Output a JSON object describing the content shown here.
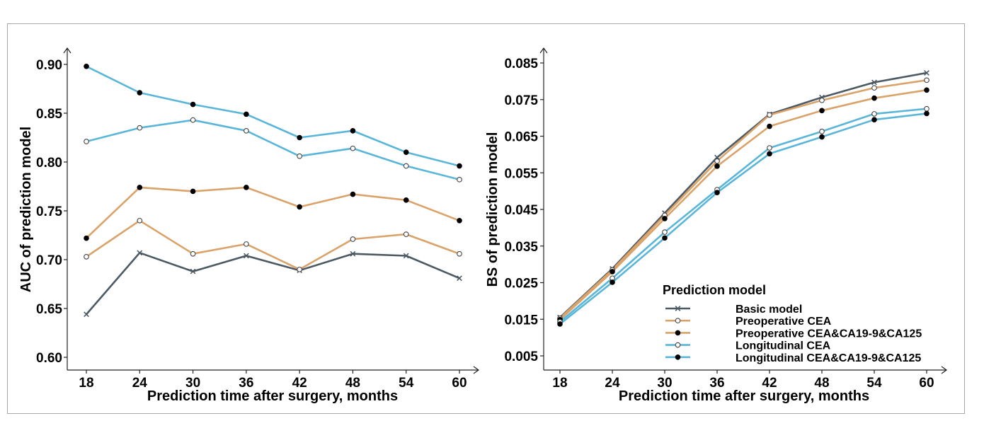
{
  "chart_data": [
    {
      "type": "line",
      "xlabel": "Prediction time after surgery, months",
      "ylabel": "AUC of prediction model",
      "x": [
        18,
        24,
        30,
        36,
        42,
        48,
        54,
        60
      ],
      "xlim": [
        16,
        61.5
      ],
      "ylim": [
        0.585,
        0.915
      ],
      "yticks": [
        "0.60",
        "0.65",
        "0.70",
        "0.75",
        "0.80",
        "0.85",
        "0.90"
      ],
      "grid": false,
      "series": [
        {
          "name": "Basic model",
          "color": "#4d5a63",
          "marker": "x",
          "values": [
            0.644,
            0.707,
            0.688,
            0.704,
            0.689,
            0.706,
            0.704,
            0.681
          ]
        },
        {
          "name": "Preoperative CEA",
          "color": "#d9a36a",
          "marker": "open-circle",
          "values": [
            0.703,
            0.74,
            0.706,
            0.716,
            0.69,
            0.721,
            0.726,
            0.706
          ]
        },
        {
          "name": "Preoperative CEA&CA19-9&CA125",
          "color": "#d9a36a",
          "marker": "filled-circle",
          "values": [
            0.722,
            0.774,
            0.77,
            0.774,
            0.754,
            0.767,
            0.761,
            0.74
          ]
        },
        {
          "name": "Longitudinal CEA",
          "color": "#5ab6d9",
          "marker": "open-circle",
          "values": [
            0.821,
            0.835,
            0.843,
            0.832,
            0.806,
            0.814,
            0.796,
            0.782
          ]
        },
        {
          "name": "Longitudinal CEA&CA19-9&CA125",
          "color": "#5ab6d9",
          "marker": "filled-circle",
          "values": [
            0.898,
            0.871,
            0.859,
            0.849,
            0.825,
            0.832,
            0.81,
            0.796
          ]
        }
      ]
    },
    {
      "type": "line",
      "xlabel": "Prediction time after surgery, months",
      "ylabel": "BS of prediction model",
      "x": [
        18,
        24,
        30,
        36,
        42,
        48,
        54,
        60
      ],
      "xlim": [
        16,
        61.5
      ],
      "ylim": [
        0.002,
        0.088
      ],
      "yticks": [
        "0.005",
        "0.015",
        "0.025",
        "0.035",
        "0.045",
        "0.055",
        "0.065",
        "0.075",
        "0.085"
      ],
      "grid": false,
      "legend": {
        "title": "Prediction model",
        "position": "bottom-right"
      },
      "series": [
        {
          "name": "Basic model",
          "color": "#4d5a63",
          "marker": "x",
          "values": [
            0.0155,
            0.0288,
            0.044,
            0.0592,
            0.071,
            0.0756,
            0.0797,
            0.0823
          ]
        },
        {
          "name": "Preoperative CEA",
          "color": "#d9a36a",
          "marker": "open-circle",
          "values": [
            0.0153,
            0.0285,
            0.0434,
            0.0582,
            0.0708,
            0.0748,
            0.0782,
            0.0803
          ]
        },
        {
          "name": "Preoperative CEA&CA19-9&CA125",
          "color": "#d9a36a",
          "marker": "filled-circle",
          "values": [
            0.0149,
            0.028,
            0.0425,
            0.0568,
            0.0677,
            0.072,
            0.0754,
            0.0776
          ]
        },
        {
          "name": "Longitudinal CEA",
          "color": "#5ab6d9",
          "marker": "open-circle",
          "values": [
            0.0143,
            0.0262,
            0.0388,
            0.0504,
            0.0618,
            0.0663,
            0.0711,
            0.0725
          ]
        },
        {
          "name": "Longitudinal CEA&CA19-9&CA125",
          "color": "#5ab6d9",
          "marker": "filled-circle",
          "values": [
            0.0137,
            0.0251,
            0.0372,
            0.0496,
            0.0602,
            0.0648,
            0.0695,
            0.0712
          ]
        }
      ]
    }
  ]
}
